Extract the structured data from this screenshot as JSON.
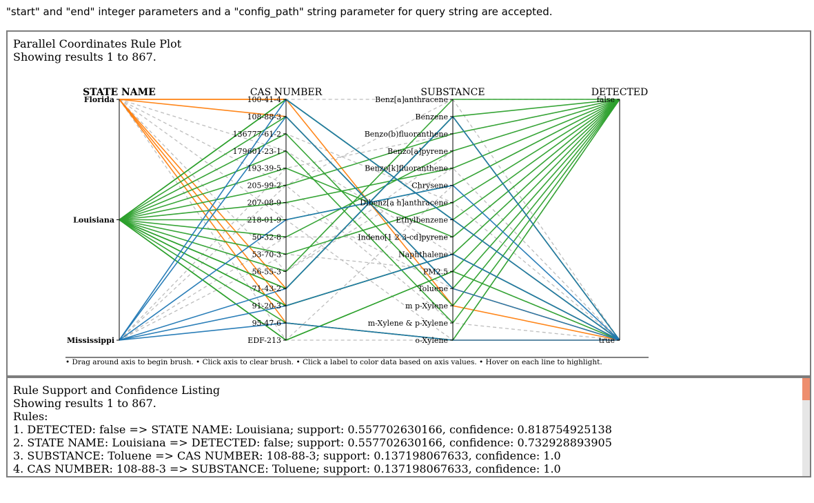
{
  "notice": "\"start\" and \"end\" integer parameters and a \"config_path\" string parameter for query string are accepted.",
  "plot": {
    "title": "Parallel Coordinates Rule Plot",
    "showing": "Showing results 1 to 867.",
    "help": "• Drag around axis to begin brush. • Click axis to clear brush. • Click a label to color data based on axis values. • Hover on each line to highlight.",
    "axes": [
      {
        "name": "STATE NAME",
        "bold": true,
        "ticks": [
          "Florida",
          "Louisiana",
          "Mississippi"
        ]
      },
      {
        "name": "CAS NUMBER",
        "bold": false,
        "ticks": [
          "100-41-4",
          "108-88-3",
          "136777-61-2",
          "179601-23-1",
          "193-39-5",
          "205-99-2",
          "207-08-9",
          "218-01-9",
          "50-32-8",
          "53-70-3",
          "56-55-3",
          "71-43-2",
          "91-20-3",
          "95-47-6",
          "EDF-213"
        ]
      },
      {
        "name": "SUBSTANCE",
        "bold": false,
        "ticks": [
          "Benz[a]anthracene",
          "Benzene",
          "Benzo(b)fluoranthene",
          "Benzo[a]pyrene",
          "Benzo[k]fluoranthene",
          "Chrysene",
          "Dibenz[a h]anthracene",
          "Ethylbenzene",
          "Indeno[1 2 3-cd]pyrene",
          "Naphthalene",
          "PM2.5",
          "Toluene",
          "m p-Xylene",
          "m-Xylene & p-Xylene",
          "o-Xylene"
        ]
      },
      {
        "name": "DETECTED",
        "bold": false,
        "ticks": [
          "false",
          "true"
        ]
      }
    ],
    "colors": {
      "Florida": "#ff7f0e",
      "Louisiana": "#2ca02c",
      "Mississippi": "#1f77b4",
      "mixed": "#6b8e23",
      "context": "#bdbdbd"
    },
    "lines": [
      {
        "state": "Florida",
        "cas": "100-41-4",
        "sub": "Ethylbenzene",
        "det": "true"
      },
      {
        "state": "Florida",
        "cas": "108-88-3",
        "sub": "Toluene",
        "det": "true"
      },
      {
        "state": "Florida",
        "cas": "71-43-2",
        "sub": "Benzene",
        "det": "true"
      },
      {
        "state": "Florida",
        "cas": "91-20-3",
        "sub": "Naphthalene",
        "det": "true"
      },
      {
        "state": "Florida",
        "cas": "95-47-6",
        "sub": "o-Xylene",
        "det": "true"
      },
      {
        "state": "Florida",
        "cas": "100-41-4",
        "sub": "m p-Xylene",
        "det": "true"
      },
      {
        "state": "Louisiana",
        "cas": "100-41-4",
        "sub": "Ethylbenzene",
        "det": "false"
      },
      {
        "state": "Louisiana",
        "cas": "108-88-3",
        "sub": "Toluene",
        "det": "false"
      },
      {
        "state": "Louisiana",
        "cas": "136777-61-2",
        "sub": "m p-Xylene",
        "det": "false"
      },
      {
        "state": "Louisiana",
        "cas": "179601-23-1",
        "sub": "m-Xylene & p-Xylene",
        "det": "false"
      },
      {
        "state": "Louisiana",
        "cas": "193-39-5",
        "sub": "Indeno[1 2 3-cd]pyrene",
        "det": "false"
      },
      {
        "state": "Louisiana",
        "cas": "205-99-2",
        "sub": "Benzo(b)fluoranthene",
        "det": "false"
      },
      {
        "state": "Louisiana",
        "cas": "207-08-9",
        "sub": "Benzo[k]fluoranthene",
        "det": "false"
      },
      {
        "state": "Louisiana",
        "cas": "218-01-9",
        "sub": "Chrysene",
        "det": "false"
      },
      {
        "state": "Louisiana",
        "cas": "50-32-8",
        "sub": "Benzo[a]pyrene",
        "det": "false"
      },
      {
        "state": "Louisiana",
        "cas": "53-70-3",
        "sub": "Dibenz[a h]anthracene",
        "det": "false"
      },
      {
        "state": "Louisiana",
        "cas": "56-55-3",
        "sub": "Benz[a]anthracene",
        "det": "false"
      },
      {
        "state": "Louisiana",
        "cas": "71-43-2",
        "sub": "Benzene",
        "det": "false"
      },
      {
        "state": "Louisiana",
        "cas": "91-20-3",
        "sub": "Naphthalene",
        "det": "false"
      },
      {
        "state": "Louisiana",
        "cas": "95-47-6",
        "sub": "o-Xylene",
        "det": "false"
      },
      {
        "state": "Louisiana",
        "cas": "EDF-213",
        "sub": "PM2.5",
        "det": "false"
      },
      {
        "state": "Louisiana",
        "cas": "100-41-4",
        "sub": "Ethylbenzene",
        "det": "true"
      },
      {
        "state": "Louisiana",
        "cas": "71-43-2",
        "sub": "Benzene",
        "det": "true"
      },
      {
        "state": "Louisiana",
        "cas": "91-20-3",
        "sub": "Naphthalene",
        "det": "true"
      },
      {
        "state": "Louisiana",
        "cas": "EDF-213",
        "sub": "PM2.5",
        "det": "true"
      },
      {
        "state": "Mississippi",
        "cas": "100-41-4",
        "sub": "Ethylbenzene",
        "det": "true"
      },
      {
        "state": "Mississippi",
        "cas": "108-88-3",
        "sub": "Toluene",
        "det": "true"
      },
      {
        "state": "Mississippi",
        "cas": "71-43-2",
        "sub": "Benzene",
        "det": "true"
      },
      {
        "state": "Mississippi",
        "cas": "91-20-3",
        "sub": "Naphthalene",
        "det": "true"
      },
      {
        "state": "Mississippi",
        "cas": "95-47-6",
        "sub": "o-Xylene",
        "det": "true"
      },
      {
        "state": "Mississippi",
        "cas": "218-01-9",
        "sub": "Chrysene",
        "det": "true"
      }
    ],
    "context_lines": [
      {
        "state": "Florida",
        "cas": "205-99-2",
        "sub": "Benz[a]anthracene",
        "det": "false"
      },
      {
        "state": "Florida",
        "cas": "56-55-3",
        "sub": "Benzo[a]pyrene",
        "det": "false"
      },
      {
        "state": "Florida",
        "cas": "EDF-213",
        "sub": "Chrysene",
        "det": "false"
      },
      {
        "state": "Mississippi",
        "cas": "193-39-5",
        "sub": "Benzo(b)fluoranthene",
        "det": "false"
      },
      {
        "state": "Mississippi",
        "cas": "50-32-8",
        "sub": "Indeno[1 2 3-cd]pyrene",
        "det": "false"
      },
      {
        "state": "Mississippi",
        "cas": "53-70-3",
        "sub": "PM2.5",
        "det": "true"
      },
      {
        "state": "Louisiana",
        "cas": "207-08-9",
        "sub": "Toluene",
        "det": "true"
      },
      {
        "state": "Louisiana",
        "cas": "136777-61-2",
        "sub": "Dibenz[a h]anthracene",
        "det": "true"
      },
      {
        "state": "Florida",
        "cas": "179601-23-1",
        "sub": "Naphthalene",
        "det": "false"
      },
      {
        "state": "Mississippi",
        "cas": "205-99-2",
        "sub": "m-Xylene & p-Xylene",
        "det": "true"
      },
      {
        "state": "Louisiana",
        "cas": "56-55-3",
        "sub": "Benzo[k]fluoranthene",
        "det": "true"
      },
      {
        "state": "Florida",
        "cas": "218-01-9",
        "sub": "o-Xylene",
        "det": "false"
      },
      {
        "state": "Louisiana",
        "cas": "100-41-4",
        "sub": "Benz[a]anthracene",
        "det": "true"
      },
      {
        "state": "Louisiana",
        "cas": "EDF-213",
        "sub": "o-Xylene",
        "det": "false"
      }
    ]
  },
  "rules": {
    "title": "Rule Support and Confidence Listing",
    "showing": "Showing results 1 to 867.",
    "label": "Rules:",
    "items": [
      "1. DETECTED: false => STATE NAME: Louisiana; support: 0.557702630166, confidence: 0.818754925138",
      "2. STATE NAME: Louisiana => DETECTED: false; support: 0.557702630166, confidence: 0.732928893905",
      "3. SUBSTANCE: Toluene => CAS NUMBER: 108-88-3; support: 0.137198067633, confidence: 1.0",
      "4. CAS NUMBER: 108-88-3 => SUBSTANCE: Toluene; support: 0.137198067633, confidence: 1.0"
    ]
  }
}
